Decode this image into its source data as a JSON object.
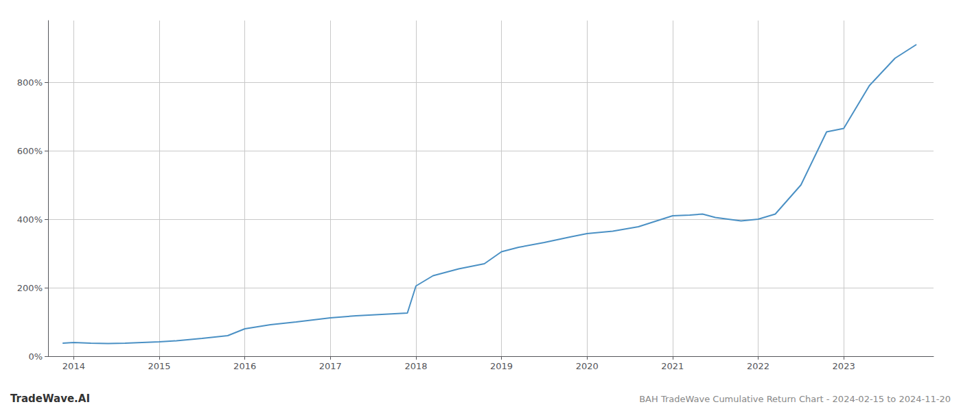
{
  "chart_data": {
    "type": "line",
    "title": "BAH TradeWave Cumulative Return Chart - 2024-02-15 to 2024-11-20",
    "annotations": [
      "TradeWave.AI"
    ],
    "color": "#4a90c4",
    "grid": true,
    "x": [
      2013.87,
      2014.0,
      2014.2,
      2014.4,
      2014.6,
      2014.8,
      2015.0,
      2015.2,
      2015.5,
      2015.8,
      2016.0,
      2016.3,
      2016.6,
      2017.0,
      2017.3,
      2017.6,
      2017.9,
      2018.0,
      2018.2,
      2018.5,
      2018.8,
      2019.0,
      2019.2,
      2019.5,
      2019.8,
      2020.0,
      2020.3,
      2020.6,
      2021.0,
      2021.2,
      2021.35,
      2021.5,
      2021.8,
      2022.0,
      2022.2,
      2022.5,
      2022.8,
      2023.0,
      2023.3,
      2023.6,
      2023.85
    ],
    "values": [
      38,
      40,
      38,
      37,
      38,
      40,
      42,
      45,
      52,
      60,
      80,
      92,
      100,
      112,
      118,
      122,
      126,
      205,
      235,
      255,
      270,
      305,
      318,
      332,
      348,
      358,
      365,
      378,
      410,
      412,
      415,
      405,
      395,
      400,
      415,
      500,
      655,
      665,
      790,
      870,
      910
    ],
    "xlim": [
      2013.7,
      2024.05
    ],
    "xticks": [
      2014,
      2015,
      2016,
      2017,
      2018,
      2019,
      2020,
      2021,
      2022,
      2023
    ],
    "ylim": [
      0,
      980
    ],
    "yticks": [
      {
        "value": 0,
        "label": "0%"
      },
      {
        "value": 200,
        "label": "200%"
      },
      {
        "value": 400,
        "label": "400%"
      },
      {
        "value": 600,
        "label": "600%"
      },
      {
        "value": 800,
        "label": "800%"
      }
    ]
  }
}
